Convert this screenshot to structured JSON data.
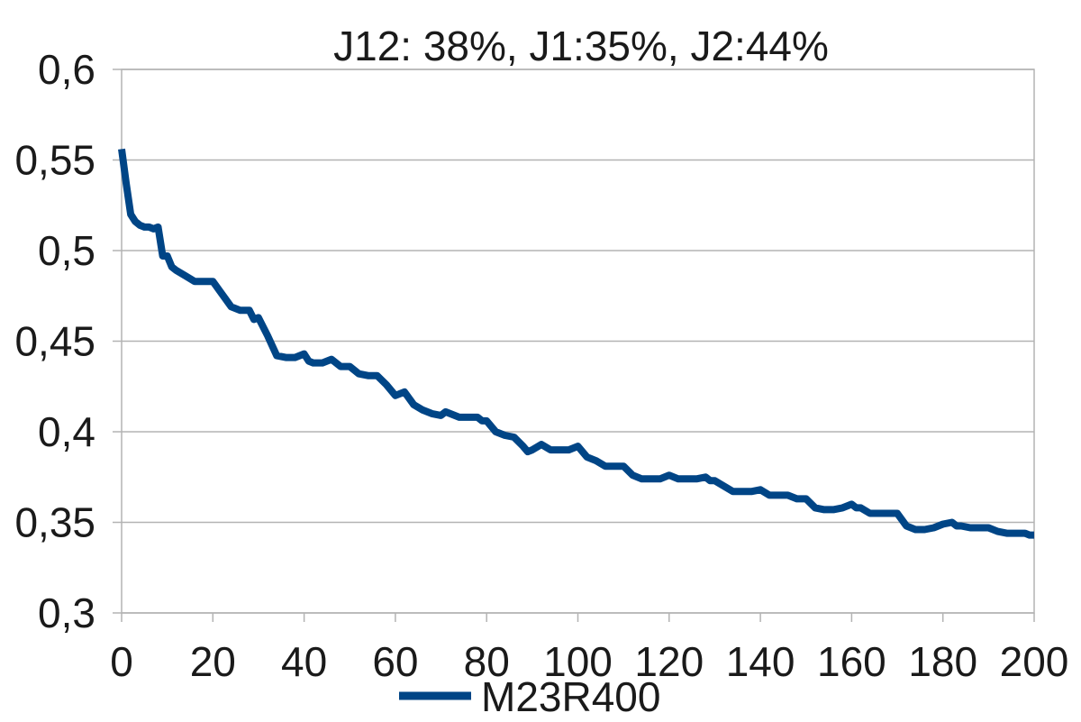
{
  "chart_data": {
    "type": "line",
    "title": "J12: 38%, J1:35%, J2:44%",
    "xlabel": "",
    "ylabel": "",
    "xlim": [
      0,
      200
    ],
    "ylim": [
      0.3,
      0.6
    ],
    "x_ticks": [
      0,
      20,
      40,
      60,
      80,
      100,
      120,
      140,
      160,
      180,
      200
    ],
    "y_ticks": [
      0.3,
      0.35,
      0.4,
      0.45,
      0.5,
      0.55,
      0.6
    ],
    "x_tick_labels": [
      "0",
      "20",
      "40",
      "60",
      "80",
      "100",
      "120",
      "140",
      "160",
      "180",
      "200"
    ],
    "y_tick_labels": [
      "0,3",
      "0,35",
      "0,4",
      "0,45",
      "0,5",
      "0,55",
      "0,6"
    ],
    "grid": true,
    "legend_position": "bottom",
    "series": [
      {
        "name": "M23R400",
        "color": "#004586",
        "x": [
          0,
          1,
          2,
          3,
          4,
          5,
          6,
          7,
          8,
          9,
          10,
          11,
          12,
          14,
          16,
          18,
          20,
          22,
          24,
          26,
          28,
          29,
          30,
          32,
          34,
          36,
          38,
          40,
          41,
          42,
          44,
          46,
          48,
          50,
          52,
          54,
          56,
          58,
          60,
          62,
          64,
          66,
          68,
          70,
          71,
          72,
          74,
          76,
          78,
          79,
          80,
          82,
          84,
          86,
          88,
          89,
          90,
          92,
          94,
          96,
          98,
          100,
          102,
          104,
          106,
          108,
          110,
          112,
          114,
          116,
          118,
          120,
          122,
          124,
          126,
          128,
          129,
          130,
          132,
          134,
          136,
          138,
          140,
          142,
          144,
          146,
          148,
          150,
          152,
          154,
          156,
          158,
          160,
          161,
          162,
          164,
          166,
          168,
          170,
          172,
          174,
          176,
          178,
          180,
          182,
          183,
          184,
          186,
          188,
          190,
          192,
          194,
          196,
          198,
          199,
          200
        ],
        "values": [
          0.556,
          0.537,
          0.52,
          0.516,
          0.514,
          0.513,
          0.513,
          0.512,
          0.513,
          0.497,
          0.497,
          0.491,
          0.489,
          0.486,
          0.483,
          0.483,
          0.483,
          0.476,
          0.469,
          0.467,
          0.467,
          0.462,
          0.463,
          0.453,
          0.442,
          0.441,
          0.441,
          0.443,
          0.439,
          0.438,
          0.438,
          0.44,
          0.436,
          0.436,
          0.432,
          0.431,
          0.431,
          0.426,
          0.42,
          0.422,
          0.415,
          0.412,
          0.41,
          0.409,
          0.411,
          0.41,
          0.408,
          0.408,
          0.408,
          0.406,
          0.406,
          0.4,
          0.398,
          0.397,
          0.392,
          0.389,
          0.39,
          0.393,
          0.39,
          0.39,
          0.39,
          0.392,
          0.386,
          0.384,
          0.381,
          0.381,
          0.381,
          0.376,
          0.374,
          0.374,
          0.374,
          0.376,
          0.374,
          0.374,
          0.374,
          0.375,
          0.373,
          0.373,
          0.37,
          0.367,
          0.367,
          0.367,
          0.368,
          0.365,
          0.365,
          0.365,
          0.363,
          0.363,
          0.358,
          0.357,
          0.357,
          0.358,
          0.36,
          0.358,
          0.358,
          0.355,
          0.355,
          0.355,
          0.355,
          0.348,
          0.346,
          0.346,
          0.347,
          0.349,
          0.35,
          0.348,
          0.348,
          0.347,
          0.347,
          0.347,
          0.345,
          0.344,
          0.344,
          0.344,
          0.343,
          0.343
        ]
      }
    ]
  }
}
